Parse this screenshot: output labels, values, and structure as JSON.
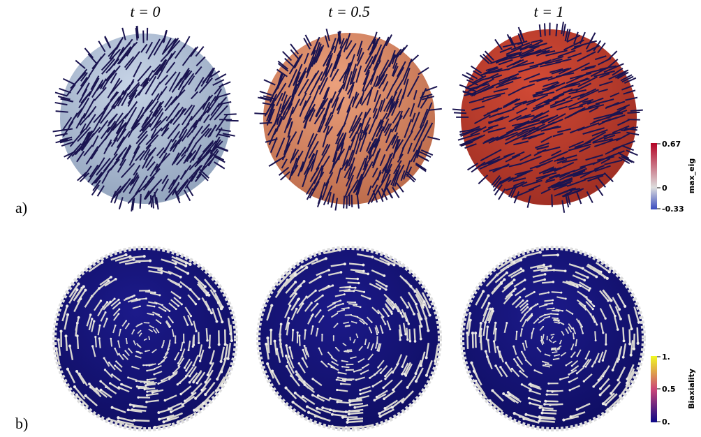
{
  "columns": [
    {
      "title": "t = 0"
    },
    {
      "title": "t = 0.5"
    },
    {
      "title": "t = 1"
    }
  ],
  "rows": [
    {
      "label": "a)"
    },
    {
      "label": "b)"
    }
  ],
  "colorbars": [
    {
      "title": "max_eig",
      "ticks": [
        "0.67",
        "0",
        "-0.33"
      ]
    },
    {
      "title": "Biaxiality",
      "ticks": [
        "1.",
        "0.5",
        "0."
      ]
    }
  ]
}
